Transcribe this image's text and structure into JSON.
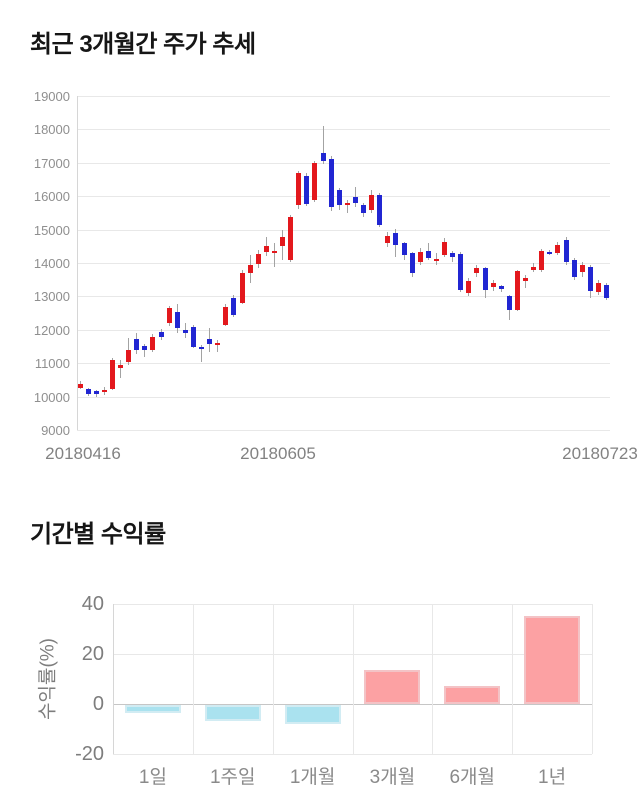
{
  "chart_data": [
    {
      "type": "candlestick",
      "title": "최근 3개월간 주가 추세",
      "ylim": [
        9000,
        19000
      ],
      "y_ticks": [
        19000,
        18000,
        17000,
        16000,
        15000,
        14000,
        13000,
        12000,
        11000,
        10000,
        9000
      ],
      "x_ticks": [
        "20180416",
        "20180605",
        "20180723"
      ],
      "grid": "horizontal",
      "up_color": "#e3181d",
      "down_color": "#2126d2",
      "wick_color": "#a3a3a3",
      "candles_format": "[open, high, low, close] (KRW), red = close>=open, blue = close<open",
      "candles": [
        [
          10260,
          10470,
          10230,
          10390
        ],
        [
          10240,
          10260,
          10020,
          10090
        ],
        [
          10170,
          10200,
          10000,
          10080
        ],
        [
          10130,
          10290,
          10060,
          10210
        ],
        [
          10230,
          11160,
          10190,
          11090
        ],
        [
          10870,
          11090,
          10570,
          10960
        ],
        [
          11050,
          11740,
          10940,
          11390
        ],
        [
          11720,
          11890,
          11270,
          11380
        ],
        [
          11510,
          11560,
          11180,
          11390
        ],
        [
          11390,
          11860,
          11340,
          11790
        ],
        [
          11940,
          12010,
          11690,
          11770
        ],
        [
          12195,
          12700,
          12100,
          12645
        ],
        [
          12545,
          12775,
          11895,
          12045
        ],
        [
          11995,
          12195,
          11745,
          11895
        ],
        [
          12095,
          12140,
          11445,
          11495
        ],
        [
          11500,
          11550,
          11045,
          11480
        ],
        [
          11715,
          12045,
          11345,
          11565
        ],
        [
          11545,
          11690,
          11345,
          11615
        ],
        [
          12145,
          12760,
          12100,
          12695
        ],
        [
          12945,
          13040,
          12390,
          12445
        ],
        [
          12810,
          13790,
          12760,
          13690
        ],
        [
          13690,
          14240,
          13390,
          13940
        ],
        [
          13970,
          14390,
          13840,
          14260
        ],
        [
          14340,
          14790,
          14210,
          14510
        ],
        [
          14330,
          14610,
          13880,
          14370
        ],
        [
          14510,
          14990,
          14090,
          14770
        ],
        [
          14090,
          15440,
          14030,
          15390
        ],
        [
          15740,
          16750,
          15620,
          16690
        ],
        [
          16600,
          16700,
          15700,
          15780
        ],
        [
          15890,
          17040,
          15820,
          16990
        ],
        [
          17290,
          18090,
          16960,
          17040
        ],
        [
          17110,
          17190,
          15550,
          15690
        ],
        [
          16190,
          16240,
          15590,
          15740
        ],
        [
          15740,
          15890,
          15490,
          15810
        ],
        [
          15970,
          16270,
          15690,
          15810
        ],
        [
          15740,
          15790,
          15390,
          15490
        ],
        [
          15590,
          16190,
          15490,
          16040
        ],
        [
          16040,
          16090,
          15090,
          15140
        ],
        [
          14590,
          14940,
          14490,
          14810
        ],
        [
          14890,
          15010,
          14190,
          14540
        ],
        [
          14590,
          14640,
          14090,
          14240
        ],
        [
          14290,
          14340,
          13590,
          13710
        ],
        [
          14040,
          14440,
          13940,
          14340
        ],
        [
          14370,
          14590,
          14090,
          14140
        ],
        [
          14120,
          14290,
          13940,
          14120
        ],
        [
          14240,
          14740,
          14170,
          14640
        ],
        [
          14310,
          14360,
          14040,
          14170
        ],
        [
          14270,
          14340,
          13140,
          13190
        ],
        [
          13100,
          13540,
          13000,
          13450
        ],
        [
          13690,
          13940,
          13590,
          13840
        ],
        [
          13840,
          13890,
          12940,
          13190
        ],
        [
          13280,
          13500,
          13150,
          13400
        ],
        [
          13300,
          13350,
          13120,
          13220
        ],
        [
          13000,
          13050,
          12300,
          12600
        ],
        [
          12600,
          13800,
          12550,
          13750
        ],
        [
          13450,
          13650,
          13250,
          13550
        ],
        [
          13800,
          14000,
          13740,
          13880
        ],
        [
          13800,
          14420,
          13740,
          14370
        ],
        [
          14340,
          14390,
          14240,
          14300
        ],
        [
          14290,
          14640,
          14240,
          14540
        ],
        [
          14690,
          14770,
          13940,
          14040
        ],
        [
          14090,
          14140,
          13490,
          13590
        ],
        [
          13740,
          14040,
          13590,
          13940
        ],
        [
          13890,
          13940,
          12940,
          13170
        ],
        [
          13140,
          13490,
          13040,
          13410
        ],
        [
          13340,
          13390,
          12890,
          12940
        ]
      ]
    },
    {
      "type": "bar",
      "title": "기간별 수익률",
      "ylabel": "수익률(%)",
      "ylim": [
        -20,
        40
      ],
      "y_ticks": [
        40,
        20,
        0,
        -20
      ],
      "categories": [
        "1일",
        "1주일",
        "1개월",
        "3개월",
        "6개월",
        "1년"
      ],
      "values": [
        -3,
        -6.5,
        -7.5,
        13.7,
        7.1,
        35.3
      ],
      "grid": "both",
      "positive_fill": "#fca1a3",
      "positive_border": "#f3c3c6",
      "negative_fill": "#aae2ef",
      "negative_border": "#d2ecf3"
    }
  ]
}
